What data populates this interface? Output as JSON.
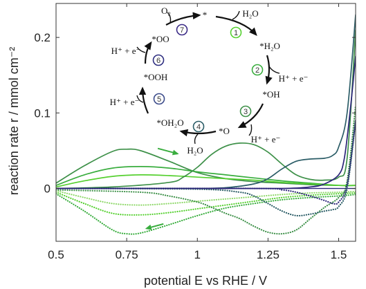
{
  "chart_data": {
    "type": "line",
    "xlabel": "potential E vs RHE / V",
    "ylabel": "reaction rate r / mmol cm⁻²",
    "xlim": [
      0.5,
      1.56
    ],
    "ylim": [
      -0.07,
      0.245
    ],
    "x_ticks": [
      0.5,
      0.75,
      1,
      1.25,
      1.5
    ],
    "x_tick_labels": [
      "0.5",
      "0.75",
      "1",
      "1.25",
      "1.5"
    ],
    "y_ticks": [
      0,
      0.1,
      0.2
    ],
    "y_tick_labels": [
      "0",
      "0.1",
      "0.2"
    ],
    "grid": false,
    "legend": "none",
    "colors": {
      "green_dark": "#3d9048",
      "green_mid": "#39ad3e",
      "green_light": "#55d02f",
      "teal_dark": "#2a5c66",
      "navy": "#2a2378"
    },
    "series": [
      {
        "color": "#3d9048",
        "style": "solid",
        "x": [
          0.5,
          0.6,
          0.7,
          0.75,
          0.8,
          0.9,
          1.0,
          1.1,
          1.2,
          1.3,
          1.4,
          1.5,
          1.56
        ],
        "y": [
          0.007,
          0.03,
          0.049,
          0.052,
          0.05,
          0.036,
          0.021,
          0.013,
          0.009,
          0.007,
          0.005,
          0.004,
          0.004
        ]
      },
      {
        "color": "#39ad3e",
        "style": "solid",
        "x": [
          0.5,
          0.6,
          0.7,
          0.8,
          0.9,
          1.0,
          1.1,
          1.2,
          1.3,
          1.4,
          1.5,
          1.56
        ],
        "y": [
          0.004,
          0.018,
          0.027,
          0.029,
          0.027,
          0.022,
          0.018,
          0.014,
          0.01,
          0.007,
          0.004,
          0.004
        ]
      },
      {
        "color": "#55d02f",
        "style": "solid",
        "x": [
          0.5,
          0.6,
          0.7,
          0.8,
          0.9,
          1.0,
          1.1,
          1.2,
          1.3,
          1.4,
          1.5,
          1.56
        ],
        "y": [
          0.002,
          0.01,
          0.016,
          0.018,
          0.017,
          0.015,
          0.013,
          0.011,
          0.008,
          0.006,
          0.004,
          0.004
        ]
      },
      {
        "color": "#3d9048",
        "style": "solid",
        "x": [
          0.5,
          0.7,
          0.9,
          0.95,
          1.0,
          1.05,
          1.1,
          1.15,
          1.2,
          1.25,
          1.3,
          1.35,
          1.4,
          1.45,
          1.5,
          1.53,
          1.56
        ],
        "y": [
          0.0,
          0.002,
          0.008,
          0.015,
          0.028,
          0.045,
          0.056,
          0.06,
          0.058,
          0.048,
          0.032,
          0.018,
          0.012,
          0.011,
          0.015,
          0.04,
          0.21
        ]
      },
      {
        "color": "#2a5c66",
        "style": "solid",
        "x": [
          0.5,
          0.9,
          1.0,
          1.1,
          1.2,
          1.25,
          1.3,
          1.35,
          1.4,
          1.45,
          1.48,
          1.5,
          1.53,
          1.56
        ],
        "y": [
          0.0,
          0.0,
          0.0,
          0.001,
          0.006,
          0.013,
          0.026,
          0.036,
          0.039,
          0.04,
          0.044,
          0.055,
          0.1,
          0.23
        ]
      },
      {
        "color": "#2a2378",
        "style": "solid",
        "x": [
          0.5,
          1.0,
          1.3,
          1.4,
          1.45,
          1.5,
          1.52,
          1.54,
          1.56
        ],
        "y": [
          0.0,
          0.0,
          0.0,
          0.002,
          0.006,
          0.018,
          0.04,
          0.1,
          0.175
        ]
      },
      {
        "color": "#39ad3e",
        "style": "dotted",
        "x": [
          0.5,
          0.6,
          0.7,
          0.75,
          0.8,
          0.9,
          1.0,
          1.1,
          1.2,
          1.3,
          1.4,
          1.5,
          1.56
        ],
        "y": [
          -0.007,
          -0.03,
          -0.055,
          -0.06,
          -0.059,
          -0.048,
          -0.036,
          -0.026,
          -0.02,
          -0.015,
          -0.012,
          -0.01,
          -0.008
        ]
      },
      {
        "color": "#55d02f",
        "style": "dotted",
        "x": [
          0.5,
          0.6,
          0.7,
          0.8,
          0.9,
          1.0,
          1.1,
          1.2,
          1.3,
          1.4,
          1.5,
          1.56
        ],
        "y": [
          -0.005,
          -0.02,
          -0.033,
          -0.035,
          -0.032,
          -0.027,
          -0.022,
          -0.017,
          -0.012,
          -0.009,
          -0.007,
          -0.006
        ]
      },
      {
        "color": "#8fd86a",
        "style": "dotted",
        "x": [
          0.5,
          0.6,
          0.7,
          0.8,
          0.9,
          1.0,
          1.1,
          1.2,
          1.3,
          1.4,
          1.5,
          1.56
        ],
        "y": [
          -0.003,
          -0.012,
          -0.02,
          -0.022,
          -0.02,
          -0.017,
          -0.014,
          -0.011,
          -0.008,
          -0.006,
          -0.005,
          -0.004
        ]
      },
      {
        "color": "#3d9048",
        "style": "dotted",
        "x": [
          0.5,
          0.8,
          0.9,
          1.0,
          1.05,
          1.1,
          1.15,
          1.2,
          1.25,
          1.3,
          1.35,
          1.4,
          1.45,
          1.5,
          1.53,
          1.56
        ],
        "y": [
          -0.002,
          -0.005,
          -0.01,
          -0.018,
          -0.025,
          -0.033,
          -0.04,
          -0.05,
          -0.058,
          -0.06,
          -0.055,
          -0.04,
          -0.025,
          -0.012,
          0.01,
          0.11
        ]
      },
      {
        "color": "#2a5c66",
        "style": "dotted",
        "x": [
          0.5,
          1.0,
          1.15,
          1.2,
          1.25,
          1.3,
          1.35,
          1.4,
          1.45,
          1.48,
          1.5,
          1.53,
          1.56
        ],
        "y": [
          0.0,
          -0.001,
          -0.005,
          -0.01,
          -0.02,
          -0.03,
          -0.036,
          -0.034,
          -0.03,
          -0.028,
          -0.024,
          0.0,
          0.09
        ]
      },
      {
        "color": "#2a2378",
        "style": "dotted",
        "x": [
          0.5,
          1.2,
          1.3,
          1.35,
          1.4,
          1.45,
          1.48,
          1.5,
          1.53,
          1.56
        ],
        "y": [
          0.0,
          0.0,
          -0.002,
          -0.005,
          -0.01,
          -0.016,
          -0.02,
          -0.018,
          0.005,
          0.09
        ]
      }
    ],
    "annotations": {
      "scan_arrows": [
        {
          "direction": "forward",
          "color": "#39ad3e",
          "from": [
            0.86,
            0.053
          ],
          "to": [
            0.93,
            0.046
          ]
        },
        {
          "direction": "backward",
          "color": "#39ad3e",
          "from": [
            0.88,
            -0.047
          ],
          "to": [
            0.82,
            -0.053
          ]
        }
      ],
      "cycle": {
        "species": [
          "*",
          "*H₂O",
          "*OH",
          "*O",
          "*OH₂O",
          "*OOH",
          "*OO"
        ],
        "reagents": [
          "H₂O",
          "H⁺ + e⁻",
          "H⁺ + e⁻",
          "H₂O",
          "H⁺ + e⁻",
          "H⁺ + e⁻",
          "O₂"
        ],
        "steps": [
          "1",
          "2",
          "3",
          "4",
          "5",
          "6",
          "7"
        ],
        "step_colors": [
          "#55d02f",
          "#39ad3e",
          "#3d9048",
          "#2a5c66",
          "#3a4a8a",
          "#2e2e80",
          "#3a2a86"
        ]
      }
    }
  }
}
